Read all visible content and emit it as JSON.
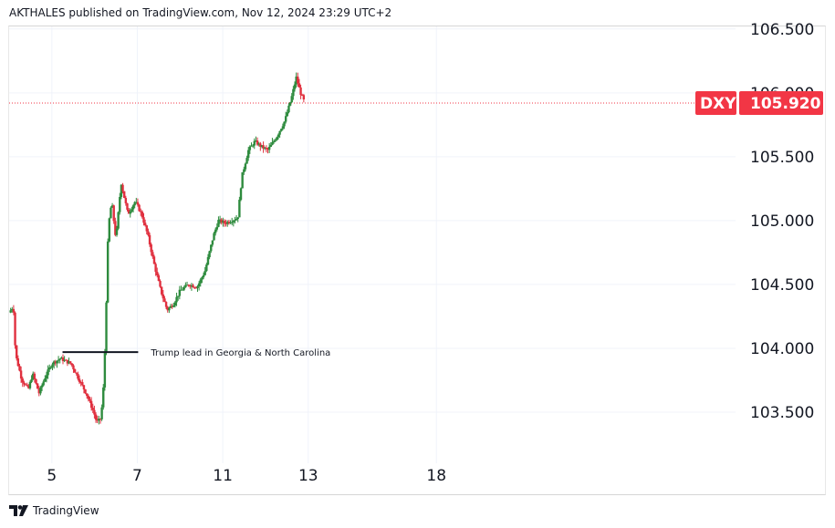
{
  "header": {
    "text": "AKTHALES published on TradingView.com, Nov 12, 2024 23:29 UTC+2"
  },
  "footer": {
    "brand": "TradingView",
    "logo_icon": "tradingview-logo-icon"
  },
  "price_badge": {
    "symbol": "DXY",
    "value": "105.920",
    "color": "#f23645"
  },
  "colors": {
    "up": "#2e8b3e",
    "down": "#e0303f",
    "grid": "#f0f3fa",
    "priceline": "#f23645"
  },
  "chart_data": {
    "type": "candlestick",
    "symbol": "DXY",
    "ylim": [
      103.1,
      106.52
    ],
    "xlim": [
      4.0,
      21.0
    ],
    "y_ticks": [
      103.5,
      104.0,
      104.5,
      105.0,
      105.5,
      106.0,
      106.5
    ],
    "y_tick_labels": [
      "103.500",
      "104.000",
      "104.500",
      "105.000",
      "105.500",
      "106.000",
      "106.500"
    ],
    "x_ticks": [
      {
        "x": 5,
        "label": "5"
      },
      {
        "x": 7,
        "label": "7"
      },
      {
        "x": 9,
        "label": "11"
      },
      {
        "x": 11,
        "label": "13"
      },
      {
        "x": 14,
        "label": "18"
      }
    ],
    "last_price": 105.92,
    "grid": true,
    "annotation": {
      "text": "Trump lead in Georgia & North Carolina",
      "price": 103.97,
      "x_start": 5.25,
      "x_end": 7.02
    },
    "price_path": [
      [
        4.0,
        104.28
      ],
      [
        4.1,
        104.33
      ],
      [
        4.15,
        103.95
      ],
      [
        4.3,
        103.75
      ],
      [
        4.45,
        103.68
      ],
      [
        4.55,
        103.8
      ],
      [
        4.7,
        103.65
      ],
      [
        4.85,
        103.78
      ],
      [
        5.0,
        103.88
      ],
      [
        5.2,
        103.92
      ],
      [
        5.45,
        103.88
      ],
      [
        5.6,
        103.78
      ],
      [
        5.8,
        103.65
      ],
      [
        5.98,
        103.5
      ],
      [
        6.05,
        103.42
      ],
      [
        6.15,
        103.45
      ],
      [
        6.22,
        103.75
      ],
      [
        6.26,
        104.18
      ],
      [
        6.32,
        104.95
      ],
      [
        6.4,
        105.15
      ],
      [
        6.5,
        104.85
      ],
      [
        6.62,
        105.3
      ],
      [
        6.78,
        105.05
      ],
      [
        6.95,
        105.15
      ],
      [
        7.1,
        105.05
      ],
      [
        7.25,
        104.88
      ],
      [
        7.4,
        104.65
      ],
      [
        7.55,
        104.45
      ],
      [
        7.7,
        104.3
      ],
      [
        7.85,
        104.35
      ],
      [
        8.0,
        104.45
      ],
      [
        8.2,
        104.5
      ],
      [
        8.4,
        104.48
      ],
      [
        8.58,
        104.6
      ],
      [
        8.78,
        104.88
      ],
      [
        8.9,
        105.0
      ],
      [
        9.05,
        104.98
      ],
      [
        9.2,
        105.0
      ],
      [
        9.35,
        105.02
      ],
      [
        9.45,
        105.35
      ],
      [
        9.6,
        105.55
      ],
      [
        9.75,
        105.62
      ],
      [
        9.9,
        105.58
      ],
      [
        10.05,
        105.55
      ],
      [
        10.25,
        105.65
      ],
      [
        10.45,
        105.78
      ],
      [
        10.6,
        105.95
      ],
      [
        10.72,
        106.12
      ],
      [
        10.82,
        106.0
      ],
      [
        10.92,
        105.92
      ]
    ]
  }
}
